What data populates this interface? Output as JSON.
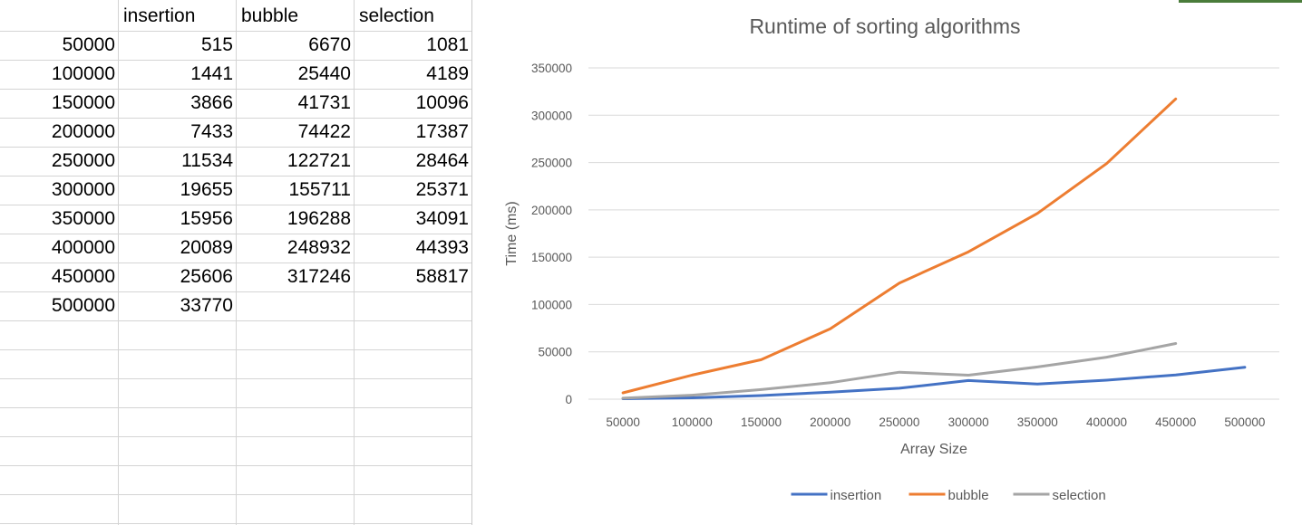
{
  "sheet": {
    "headers": [
      "",
      "insertion",
      "bubble",
      "selection"
    ],
    "rows": [
      [
        "50000",
        "515",
        "6670",
        "1081"
      ],
      [
        "100000",
        "1441",
        "25440",
        "4189"
      ],
      [
        "150000",
        "3866",
        "41731",
        "10096"
      ],
      [
        "200000",
        "7433",
        "74422",
        "17387"
      ],
      [
        "250000",
        "11534",
        "122721",
        "28464"
      ],
      [
        "300000",
        "19655",
        "155711",
        "25371"
      ],
      [
        "350000",
        "15956",
        "196288",
        "34091"
      ],
      [
        "400000",
        "20089",
        "248932",
        "44393"
      ],
      [
        "450000",
        "25606",
        "317246",
        "58817"
      ],
      [
        "500000",
        "33770",
        "",
        ""
      ]
    ]
  },
  "chart_data": {
    "type": "line",
    "title": "Runtime of sorting algorithms",
    "xlabel": "Array Size",
    "ylabel": "Time (ms)",
    "categories": [
      "50000",
      "100000",
      "150000",
      "200000",
      "250000",
      "300000",
      "350000",
      "400000",
      "450000",
      "500000"
    ],
    "ylim": [
      0,
      350000
    ],
    "yticks": [
      0,
      50000,
      100000,
      150000,
      200000,
      250000,
      300000,
      350000
    ],
    "ytick_labels": [
      "0",
      "50000",
      "100000",
      "150000",
      "200000",
      "250000",
      "300000",
      "350000"
    ],
    "grid": true,
    "legend_position": "bottom",
    "series": [
      {
        "name": "insertion",
        "color": "#4472C4",
        "values": [
          515,
          1441,
          3866,
          7433,
          11534,
          19655,
          15956,
          20089,
          25606,
          33770
        ]
      },
      {
        "name": "bubble",
        "color": "#ED7D31",
        "values": [
          6670,
          25440,
          41731,
          74422,
          122721,
          155711,
          196288,
          248932,
          317246,
          null
        ]
      },
      {
        "name": "selection",
        "color": "#A5A5A5",
        "values": [
          1081,
          4189,
          10096,
          17387,
          28464,
          25371,
          34091,
          44393,
          58817,
          null
        ]
      }
    ]
  }
}
